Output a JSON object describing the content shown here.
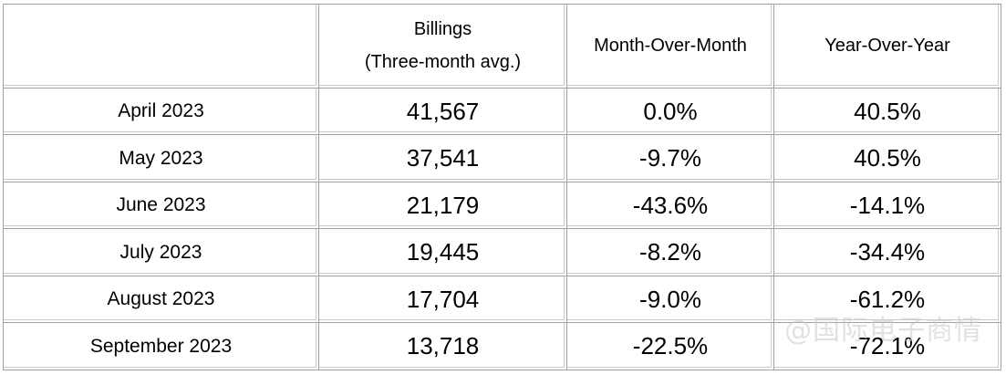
{
  "table": {
    "headers": {
      "col1": "",
      "billings_line1": "Billings",
      "billings_line2": "(Three-month avg.)",
      "mom": "Month-Over-Month",
      "yoy": "Year-Over-Year"
    },
    "rows": [
      {
        "month": "April 2023",
        "billings": "41,567",
        "mom": "0.0%",
        "yoy": "40.5%"
      },
      {
        "month": "May 2023",
        "billings": "37,541",
        "mom": "-9.7%",
        "yoy": "40.5%"
      },
      {
        "month": "June 2023",
        "billings": "21,179",
        "mom": "-43.6%",
        "yoy": "-14.1%"
      },
      {
        "month": "July 2023",
        "billings": "19,445",
        "mom": "-8.2%",
        "yoy": "-34.4%"
      },
      {
        "month": "August 2023",
        "billings": "17,704",
        "mom": "-9.0%",
        "yoy": "-61.2%"
      },
      {
        "month": "September 2023",
        "billings": "13,718",
        "mom": "-22.5%",
        "yoy": "-72.1%"
      }
    ]
  },
  "watermark": "@国际电子商情"
}
